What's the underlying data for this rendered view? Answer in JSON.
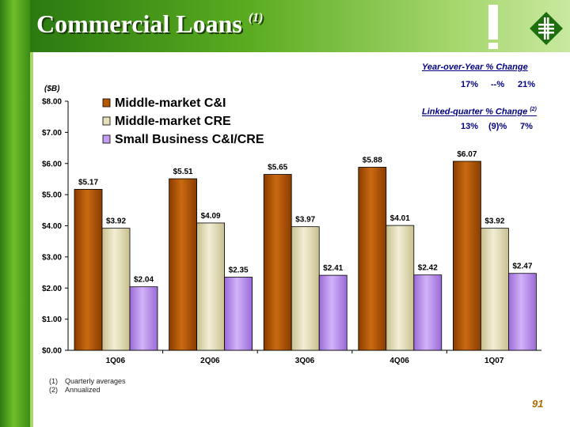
{
  "header": {
    "title": "Commercial Loans",
    "title_note": "(1)",
    "page_number": "91"
  },
  "yoy": {
    "label": "Year-over-Year % Change",
    "values": [
      "17%",
      "--%",
      "21%"
    ]
  },
  "linked": {
    "label": "Linked-quarter % Change",
    "note": "(2)",
    "values": [
      "13%",
      "(9)%",
      "7%"
    ]
  },
  "footnotes": [
    {
      "marker": "(1)",
      "text": "Quarterly averages"
    },
    {
      "marker": "(2)",
      "text": "Annualized"
    }
  ],
  "colors": {
    "c_and_i": "#b35a00",
    "cre": "#e6e0b8",
    "small_business": "#c29cf0"
  },
  "chart_data": {
    "type": "bar",
    "unit_label": "($B)",
    "categories": [
      "1Q06",
      "2Q06",
      "3Q06",
      "4Q06",
      "1Q07"
    ],
    "series": [
      {
        "name": "Middle-market C&I",
        "values": [
          5.17,
          5.51,
          5.65,
          5.88,
          6.07
        ],
        "labels": [
          "$5.17",
          "$5.51",
          "$5.65",
          "$5.88",
          "$6.07"
        ]
      },
      {
        "name": "Middle-market CRE",
        "values": [
          3.92,
          4.09,
          3.97,
          4.01,
          3.92
        ],
        "labels": [
          "$3.92",
          "$4.09",
          "$3.97",
          "$4.01",
          "$3.92"
        ]
      },
      {
        "name": "Small Business C&I/CRE",
        "values": [
          2.04,
          2.35,
          2.41,
          2.42,
          2.47
        ],
        "labels": [
          "$2.04",
          "$2.35",
          "$2.41",
          "$2.42",
          "$2.47"
        ]
      }
    ],
    "ylim": [
      0,
      8
    ],
    "yticks": [
      "$0.00",
      "$1.00",
      "$2.00",
      "$3.00",
      "$4.00",
      "$5.00",
      "$6.00",
      "$7.00",
      "$8.00"
    ],
    "legend_position": "top-left",
    "grid": false
  }
}
